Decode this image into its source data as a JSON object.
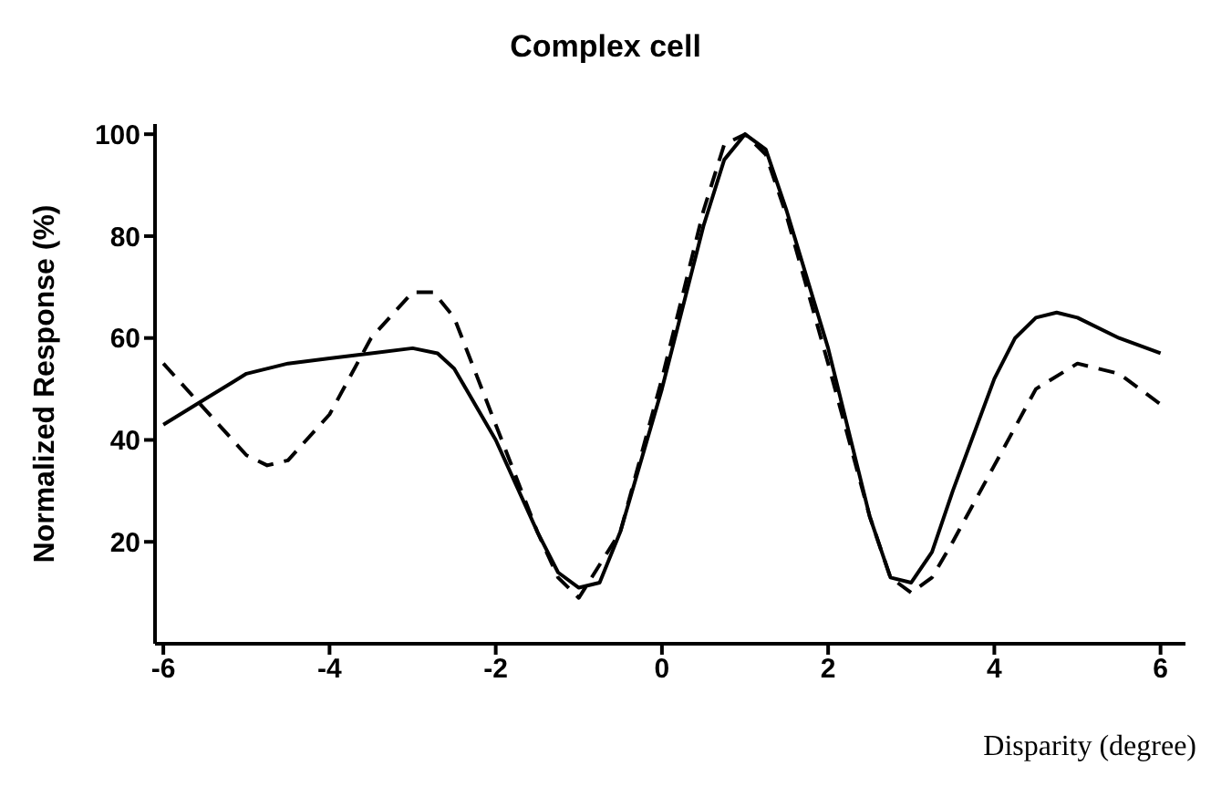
{
  "chart_data": {
    "type": "line",
    "title": "Complex cell",
    "xlabel": "Disparity (degree)",
    "ylabel": "Normalized Response (%)",
    "xlim": [
      -6.1,
      6.3
    ],
    "xticks": [
      -6,
      -4,
      -2,
      0,
      2,
      4,
      6
    ],
    "ylim": [
      0,
      102
    ],
    "yticks": [
      20,
      40,
      60,
      80,
      100
    ],
    "grid": false,
    "legend": false,
    "marker": "none",
    "series": [
      {
        "color": "#000000",
        "line_style": "solid",
        "x": [
          -6,
          -5.5,
          -5,
          -4.5,
          -4,
          -3.5,
          -3,
          -2.7,
          -2.5,
          -2,
          -1.5,
          -1.25,
          -1,
          -0.75,
          -0.5,
          0,
          0.5,
          0.75,
          1,
          1.25,
          1.5,
          2,
          2.5,
          2.75,
          3,
          3.25,
          3.5,
          4,
          4.25,
          4.5,
          4.75,
          5,
          5.5,
          6
        ],
        "values": [
          43,
          48,
          53,
          55,
          56,
          57,
          58,
          57,
          54,
          40,
          22,
          14,
          11,
          12,
          22,
          50,
          82,
          95,
          100,
          97,
          85,
          58,
          25,
          13,
          12,
          18,
          30,
          52,
          60,
          64,
          65,
          64,
          60,
          57
        ]
      },
      {
        "color": "#000000",
        "line_style": "dashed",
        "x": [
          -6,
          -5.5,
          -5,
          -4.75,
          -4.5,
          -4,
          -3.5,
          -3,
          -2.75,
          -2.5,
          -2,
          -1.5,
          -1.25,
          -1,
          -0.5,
          0,
          0.5,
          0.75,
          1,
          1.25,
          1.5,
          2,
          2.5,
          2.75,
          3,
          3.25,
          3.5,
          4,
          4.5,
          5,
          5.5,
          6
        ],
        "values": [
          55,
          46,
          37,
          35,
          36,
          45,
          60,
          69,
          69,
          64,
          43,
          22,
          13,
          9,
          22,
          52,
          85,
          98,
          100,
          96,
          84,
          55,
          25,
          13,
          10,
          13,
          20,
          35,
          50,
          55,
          53,
          47
        ]
      }
    ]
  }
}
